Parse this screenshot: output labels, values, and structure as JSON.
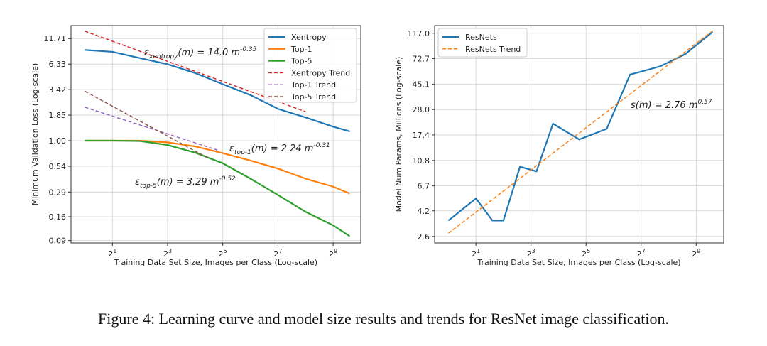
{
  "caption": "Figure 4: Learning curve and model size results and trends for ResNet image classification.",
  "chart_data": [
    {
      "type": "line",
      "title": "",
      "xlabel": "Training Data Set Size, Images per Class (Log-scale)",
      "ylabel": "Minimum Validation Loss (Log-scale)",
      "xscale": "log2",
      "yscale": "log",
      "xlim_log2": [
        -0.5,
        10
      ],
      "ylim": [
        0.085,
        16
      ],
      "x_ticks": [
        {
          "value_log2": 1,
          "base": "2",
          "exp": "1"
        },
        {
          "value_log2": 3,
          "base": "2",
          "exp": "3"
        },
        {
          "value_log2": 5,
          "base": "2",
          "exp": "5"
        },
        {
          "value_log2": 7,
          "base": "2",
          "exp": "7"
        },
        {
          "value_log2": 9,
          "base": "2",
          "exp": "9"
        }
      ],
      "y_ticks": [
        11.71,
        6.33,
        3.42,
        1.85,
        1.0,
        0.54,
        0.29,
        0.16,
        0.09
      ],
      "y_tick_labels": [
        "11.71",
        "6.33",
        "3.42",
        "1.85",
        "1.00",
        "0.54",
        "0.29",
        "0.16",
        "0.09"
      ],
      "grid": true,
      "legend_position": "top-right",
      "series": [
        {
          "name": "Xentropy",
          "style": "solid",
          "color": "#1f77b4",
          "x_log2": [
            0,
            1,
            2,
            3,
            4,
            5,
            6,
            7,
            8,
            9,
            9.6
          ],
          "values": [
            8.9,
            8.5,
            7.3,
            6.3,
            5.1,
            3.9,
            3.0,
            2.15,
            1.75,
            1.4,
            1.25
          ]
        },
        {
          "name": "Top-1",
          "style": "solid",
          "color": "#ff7f0e",
          "x_log2": [
            0,
            1,
            2,
            3,
            4,
            5,
            6,
            7,
            8,
            9,
            9.6
          ],
          "values": [
            1.0,
            1.0,
            1.0,
            0.96,
            0.87,
            0.74,
            0.62,
            0.51,
            0.4,
            0.33,
            0.28
          ]
        },
        {
          "name": "Top-5",
          "style": "solid",
          "color": "#2ca02c",
          "x_log2": [
            0,
            1,
            2,
            3,
            4,
            5,
            6,
            7,
            8,
            9,
            9.6
          ],
          "values": [
            1.0,
            1.0,
            0.99,
            0.9,
            0.75,
            0.58,
            0.4,
            0.27,
            0.18,
            0.13,
            0.1
          ]
        },
        {
          "name": "Xentropy Trend",
          "style": "dashed",
          "color": "#d62728",
          "fit": {
            "a": 14.0,
            "b": -0.35
          },
          "x_log2_range": [
            0,
            8
          ]
        },
        {
          "name": "Top-1 Trend",
          "style": "dashed",
          "color": "#9467bd",
          "fit": {
            "a": 2.24,
            "b": -0.31
          },
          "x_log2_range": [
            0,
            4.8
          ]
        },
        {
          "name": "Top-5 Trend",
          "style": "dashed",
          "color": "#8c564b",
          "fit": {
            "a": 3.29,
            "b": -0.52
          },
          "x_log2_range": [
            0,
            4.5
          ]
        }
      ],
      "annotations": [
        {
          "prefix": "ε",
          "sub": "xentropy",
          "body": "(m) = 14.0 m",
          "sup": "-0.35"
        },
        {
          "prefix": "ε",
          "sub": "top-1",
          "body": "(m) = 2.24 m",
          "sup": "-0.31"
        },
        {
          "prefix": "ε",
          "sub": "top-5",
          "body": "(m) = 3.29 m",
          "sup": "-0.52"
        }
      ]
    },
    {
      "type": "line",
      "title": "",
      "xlabel": "Training Data Set Size, Images per Class (Log-scale)",
      "ylabel": "Model Num Params, Millions (Log-scale)",
      "xscale": "log2",
      "yscale": "log",
      "xlim_log2": [
        -0.5,
        10
      ],
      "ylim": [
        2.3,
        135
      ],
      "x_ticks": [
        {
          "value_log2": 1,
          "base": "2",
          "exp": "1"
        },
        {
          "value_log2": 3,
          "base": "2",
          "exp": "3"
        },
        {
          "value_log2": 5,
          "base": "2",
          "exp": "5"
        },
        {
          "value_log2": 7,
          "base": "2",
          "exp": "7"
        },
        {
          "value_log2": 9,
          "base": "2",
          "exp": "9"
        }
      ],
      "y_ticks": [
        117.0,
        72.7,
        45.1,
        28.0,
        17.4,
        10.8,
        6.7,
        4.2,
        2.6
      ],
      "y_tick_labels": [
        "117.0",
        "72.7",
        "45.1",
        "28.0",
        "17.4",
        "10.8",
        "6.7",
        "4.2",
        "2.6"
      ],
      "grid": true,
      "legend_position": "top-left",
      "series": [
        {
          "name": "ResNets",
          "style": "solid",
          "color": "#1f77b4",
          "x_log2": [
            0,
            1,
            1.6,
            2,
            2.6,
            3.2,
            3.8,
            4.75,
            5.75,
            6.6,
            7,
            7.7,
            8.6,
            9.6
          ],
          "values": [
            3.5,
            5.3,
            3.5,
            3.5,
            9.6,
            8.8,
            21.5,
            16.0,
            19.5,
            54,
            57,
            63,
            79,
            120
          ]
        },
        {
          "name": "ResNets Trend",
          "style": "dashed",
          "color": "#ff7f0e",
          "fit": {
            "a": 2.76,
            "b": 0.57
          },
          "x_log2_range": [
            0,
            9.6
          ]
        }
      ],
      "annotations": [
        {
          "prefix": "",
          "sub": "",
          "body": "s(m) = 2.76 m",
          "sup": "0.57"
        }
      ]
    }
  ]
}
